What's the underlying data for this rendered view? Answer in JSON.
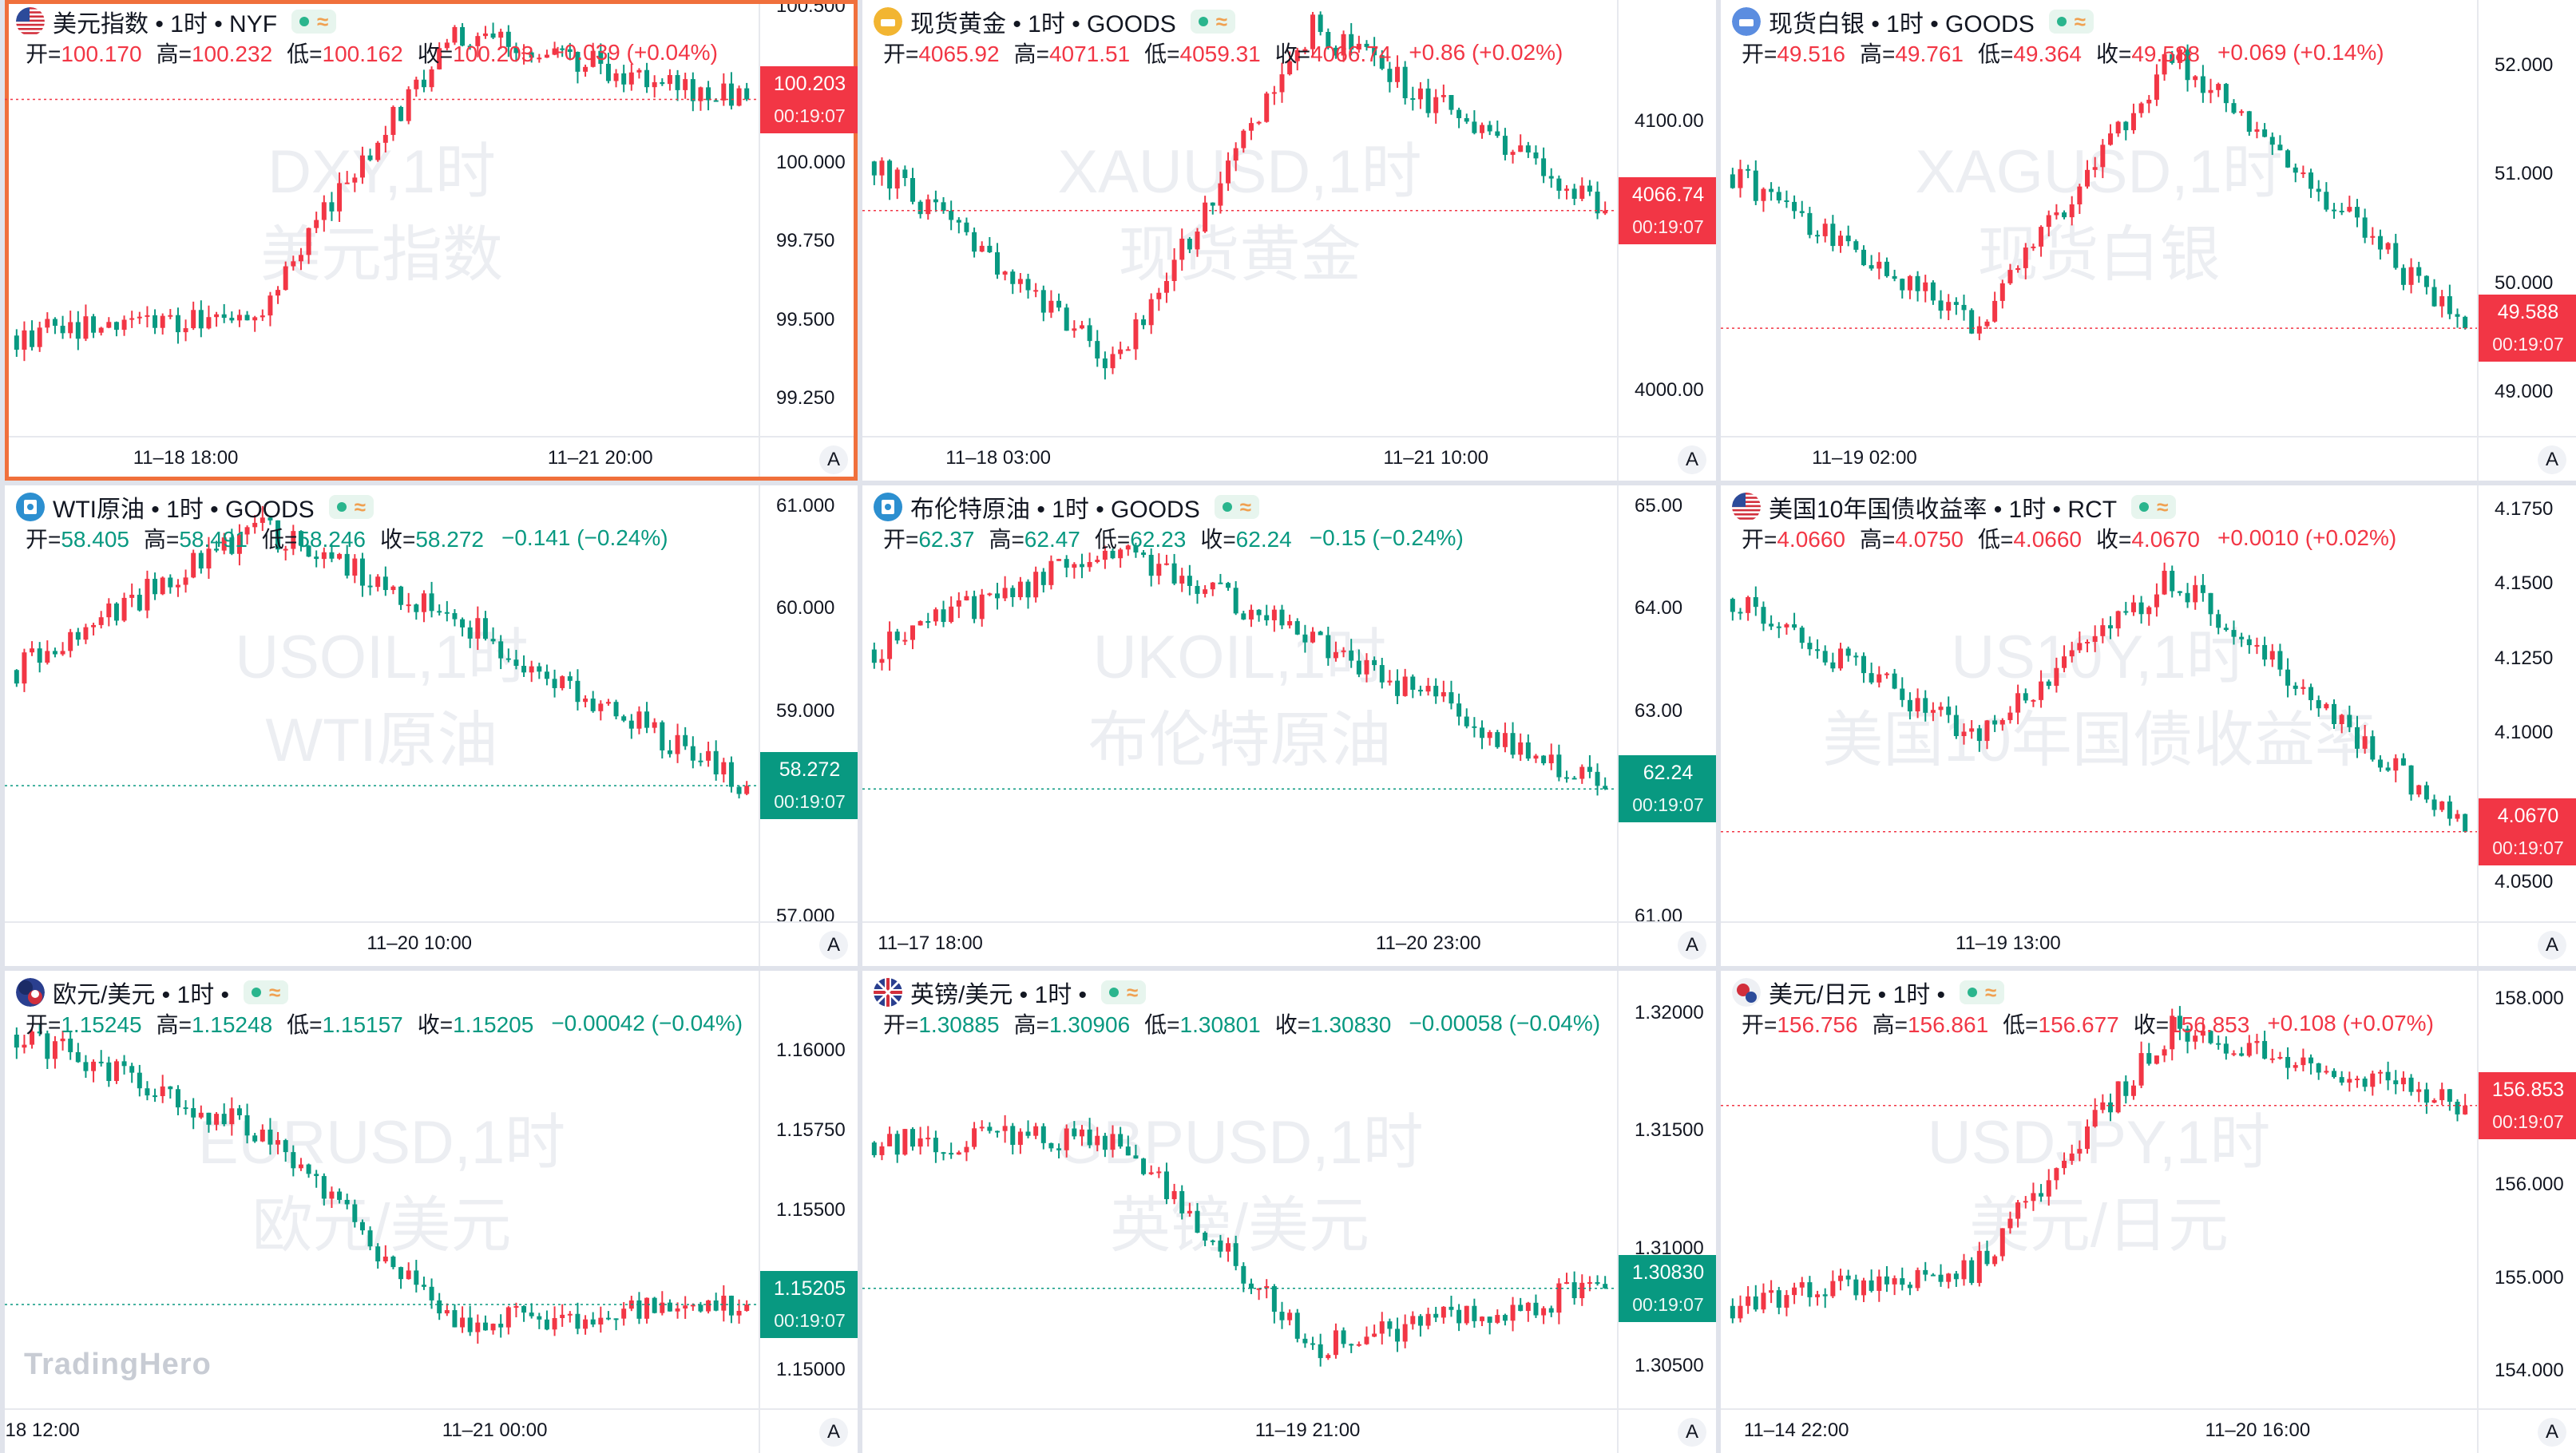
{
  "brand": "TradingHero",
  "colors": {
    "up": "#f23645",
    "down": "#089981",
    "active_border": "#f0703c"
  },
  "panes": [
    {
      "title": "美元指数 • 1时 • NYF",
      "icon": "us-flag-icon",
      "active": true,
      "open": "100.170",
      "high": "100.232",
      "low": "100.162",
      "close": "100.203",
      "change": "+0.039 (+0.04%)",
      "direction": "up",
      "watermark": [
        "DXY,1时",
        "美元指数"
      ],
      "y_ticks": [
        "100.500",
        "100.250",
        "100.000",
        "99.750",
        "99.500",
        "99.250"
      ],
      "y_range": [
        99.13,
        100.52
      ],
      "last_price": "100.203",
      "countdown": "00:19:07",
      "x_labels": [
        "11–18 18:00",
        "11–21 20:00"
      ],
      "series": {
        "start": 99.45,
        "mid": 99.53,
        "peak": 100.42,
        "end": 100.203,
        "n": 96
      },
      "a_label": "A"
    },
    {
      "title": "现货黄金 • 1时 • GOODS",
      "icon": "gold-icon",
      "active": false,
      "open": "4065.92",
      "high": "4071.51",
      "low": "4059.31",
      "close": "4066.74",
      "change": "+0.86 (+0.02%)",
      "direction": "up",
      "watermark": [
        "XAUUSD,1时",
        "现货黄金"
      ],
      "y_ticks": [
        "4100.00",
        "4000.00"
      ],
      "y_range": [
        3983,
        4145
      ],
      "last_price": "4066.74",
      "countdown": "00:19:07",
      "x_labels": [
        "11–18 03:00",
        "11–21 10:00"
      ],
      "series": {
        "start": 4085,
        "mid": 4010,
        "peak": 4135,
        "end": 4066.74,
        "n": 96
      },
      "a_label": "A"
    },
    {
      "title": "现货白银 • 1时 • GOODS",
      "icon": "silver-icon",
      "active": false,
      "open": "49.516",
      "high": "49.761",
      "low": "49.364",
      "close": "49.588",
      "change": "+0.069 (+0.14%)",
      "direction": "up",
      "watermark": [
        "XAGUSD,1时",
        "现货白银"
      ],
      "y_ticks": [
        "52.000",
        "51.000",
        "50.000",
        "49.000"
      ],
      "y_range": [
        48.6,
        52.6
      ],
      "last_price": "49.588",
      "countdown": "00:19:07",
      "x_labels": [
        "11–19 02:00"
      ],
      "series": {
        "start": 51.0,
        "mid": 49.6,
        "peak": 52.1,
        "end": 49.588,
        "n": 96
      },
      "a_label": "A"
    },
    {
      "title": "WTI原油 • 1时 • GOODS",
      "icon": "oil-icon",
      "active": false,
      "open": "58.405",
      "high": "58.491",
      "low": "58.246",
      "close": "58.272",
      "change": "−0.141 (−0.24%)",
      "direction": "down",
      "watermark": [
        "USOIL,1时",
        "WTI原油"
      ],
      "y_ticks": [
        "61.000",
        "60.000",
        "59.000",
        "57.000"
      ],
      "y_range": [
        56.95,
        61.2
      ],
      "last_price": "58.272",
      "countdown": "00:19:07",
      "x_labels": [
        "11–20 10:00"
      ],
      "series": {
        "start": 59.4,
        "mid": 60.8,
        "peak": 59.9,
        "end": 58.272,
        "n": 96
      },
      "a_label": "A"
    },
    {
      "title": "布伦特原油 • 1时 • GOODS",
      "icon": "oil-icon",
      "active": false,
      "open": "62.37",
      "high": "62.47",
      "low": "62.23",
      "close": "62.24",
      "change": "−0.15 (−0.24%)",
      "direction": "down",
      "watermark": [
        "UKOIL,1时",
        "布伦特原油"
      ],
      "y_ticks": [
        "65.00",
        "64.00",
        "63.00",
        "61.00"
      ],
      "y_range": [
        60.95,
        65.2
      ],
      "last_price": "62.24",
      "countdown": "00:19:07",
      "x_labels": [
        "11–17 18:00",
        "11–20 23:00"
      ],
      "series": {
        "start": 63.6,
        "mid": 64.6,
        "peak": 63.7,
        "end": 62.24,
        "n": 96
      },
      "a_label": "A"
    },
    {
      "title": "美国10年国债收益率 • 1时 • RCT",
      "icon": "us-flag-icon",
      "active": false,
      "open": "4.0660",
      "high": "4.0750",
      "low": "4.0660",
      "close": "4.0670",
      "change": "+0.0010 (+0.02%)",
      "direction": "up",
      "watermark": [
        "US10Y,1时",
        "美国10年国债收益率"
      ],
      "y_ticks": [
        "4.1750",
        "4.1500",
        "4.1250",
        "4.1000",
        "4.0750",
        "4.0500"
      ],
      "y_range": [
        4.037,
        4.183
      ],
      "last_price": "4.0670",
      "countdown": "00:19:07",
      "x_labels": [
        "11–19 13:00"
      ],
      "series": {
        "start": 4.145,
        "mid": 4.1,
        "peak": 4.152,
        "end": 4.067,
        "n": 96
      },
      "a_label": "A"
    },
    {
      "title": "欧元/美元 • 1时 •",
      "icon": "eu-flag-icon",
      "active": false,
      "open": "1.15245",
      "high": "1.15248",
      "low": "1.15157",
      "close": "1.15205",
      "change": "−0.00042 (−0.04%)",
      "direction": "down",
      "watermark": [
        "EURUSD,1时",
        "欧元/美元"
      ],
      "y_ticks": [
        "1.16000",
        "1.15750",
        "1.15500",
        "1.15000"
      ],
      "y_range": [
        1.1488,
        1.1625
      ],
      "last_price": "1.15205",
      "countdown": "00:19:07",
      "x_labels": [
        "18 12:00",
        "11–21 00:00"
      ],
      "series": {
        "start": 1.1605,
        "mid": 1.1575,
        "peak": 1.1515,
        "end": 1.15205,
        "n": 96
      },
      "a_label": "A"
    },
    {
      "title": "英镑/美元 • 1时 •",
      "icon": "uk-flag-icon",
      "active": false,
      "open": "1.30885",
      "high": "1.30906",
      "low": "1.30801",
      "close": "1.30830",
      "change": "−0.00058 (−0.04%)",
      "direction": "down",
      "watermark": [
        "GBPUSD,1时",
        "英镑/美元"
      ],
      "y_ticks": [
        "1.32000",
        "1.31500",
        "1.31000",
        "1.30500"
      ],
      "y_range": [
        1.3032,
        1.3218
      ],
      "last_price": "1.30830",
      "countdown": "00:19:07",
      "x_labels": [
        "11–19 21:00"
      ],
      "series": {
        "start": 1.3145,
        "mid": 1.3148,
        "peak": 1.3058,
        "end": 1.3083,
        "n": 96
      },
      "a_label": "A"
    },
    {
      "title": "美元/日元 • 1时 •",
      "icon": "us-jp-flag-icon",
      "active": false,
      "open": "156.756",
      "high": "156.861",
      "low": "156.677",
      "close": "156.853",
      "change": "+0.108 (+0.07%)",
      "direction": "up",
      "watermark": [
        "USDJPY,1时",
        "美元/日元"
      ],
      "y_ticks": [
        "158.000",
        "157.000",
        "156.000",
        "155.000",
        "154.000"
      ],
      "y_range": [
        153.6,
        158.3
      ],
      "last_price": "156.853",
      "countdown": "00:19:07",
      "x_labels": [
        "11–14 22:00",
        "11–20 16:00"
      ],
      "series": {
        "start": 154.7,
        "mid": 155.1,
        "peak": 157.7,
        "end": 156.853,
        "n": 96
      },
      "a_label": "A"
    }
  ]
}
